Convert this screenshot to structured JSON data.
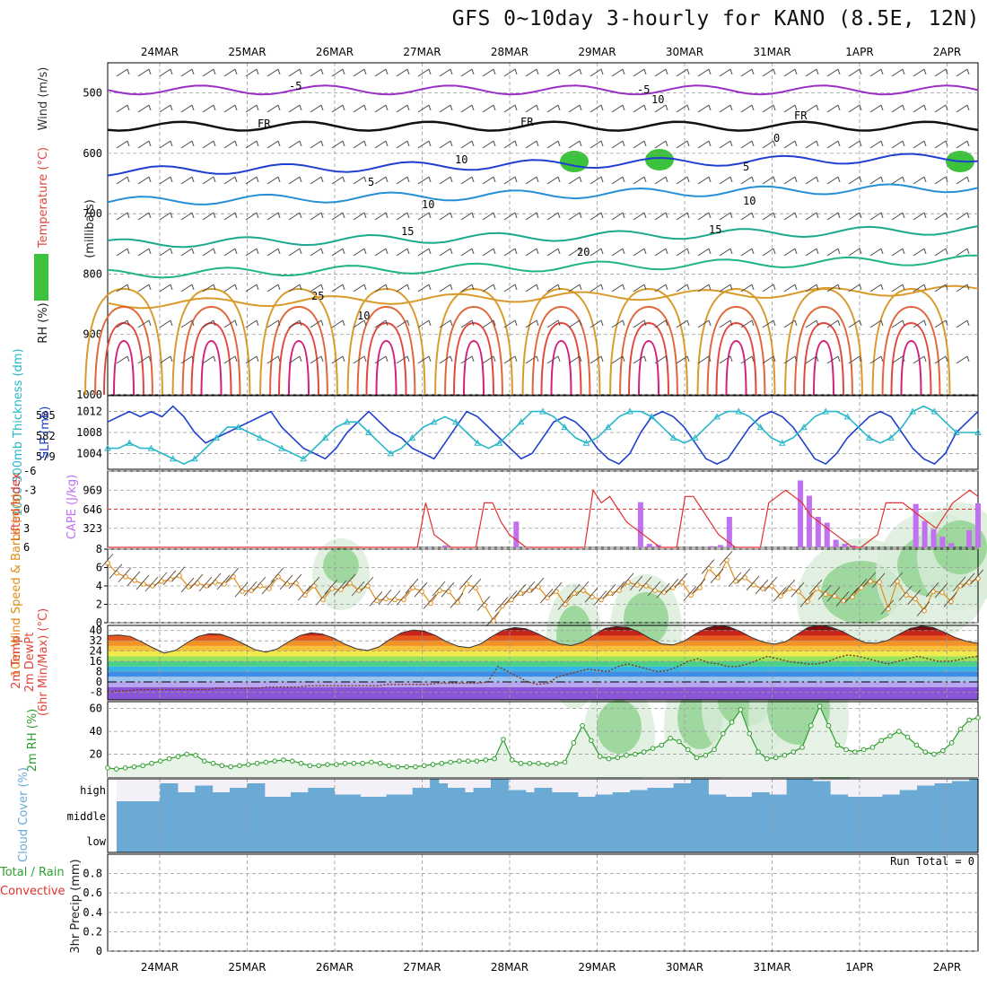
{
  "title": "GFS 0~10day 3-hourly for KANO (8.5E, 12N)",
  "colors": {
    "temp": "#e0463c",
    "wind": "#4a4a4a",
    "rh_green": "#3cc23c",
    "slp": "#1f3fd0",
    "thickness": "#27b7c9",
    "lifted": "#e03030",
    "cape": "#c070f0",
    "wind10": "#e08c1a",
    "cloud": "#6aaad4",
    "rh2m": "#2e9e2e",
    "precip_total": "#2ea02e",
    "precip_conv": "#e03030"
  },
  "chart_data": [
    {
      "panel": "upper_air",
      "type": "heatmap",
      "dates": [
        "24MAR",
        "25MAR",
        "26MAR",
        "27MAR",
        "28MAR",
        "29MAR",
        "30MAR",
        "31MAR",
        "1APR",
        "2APR"
      ],
      "y_ticks": [
        500,
        600,
        700,
        800,
        900,
        1000
      ],
      "ylim": [
        450,
        1000
      ],
      "ylabels": [
        "RH (%)",
        "Temperature (°C)",
        "Wind (m/s)"
      ],
      "yaxis_label": "(millibars)",
      "isotherm_labels": [
        "-5",
        "-5",
        "FR",
        "FR",
        "FR",
        "0",
        "5",
        "5",
        "10",
        "10",
        "15",
        "15",
        "20",
        "25",
        "10",
        "10",
        "10"
      ],
      "isotherm_levels": [
        {
          "label": "-5",
          "level": 495
        },
        {
          "label": "FR",
          "level": 555
        },
        {
          "label": "5",
          "level": 630
        },
        {
          "label": "10",
          "level": 680
        },
        {
          "label": "15",
          "level": 750
        },
        {
          "label": "20",
          "level": 800
        },
        {
          "label": "25",
          "level": 850
        }
      ]
    },
    {
      "panel": "slp_thickness",
      "type": "line",
      "ylabels": [
        "1000-500mb Thickness (dm)",
        "SLP (mb)"
      ],
      "left_ticks": [
        579,
        582,
        585
      ],
      "right_ticks": [
        1004,
        1008,
        1012
      ],
      "slp_lim": [
        1001,
        1015
      ],
      "series": [
        {
          "name": "SLP",
          "values": [
            1010,
            1011,
            1012,
            1011,
            1012,
            1011,
            1013,
            1011,
            1008,
            1006,
            1007,
            1008,
            1009,
            1010,
            1011,
            1012,
            1009,
            1007,
            1005,
            1004,
            1003,
            1005,
            1008,
            1010,
            1012,
            1010,
            1008,
            1007,
            1005,
            1004,
            1003,
            1006,
            1009,
            1012,
            1011,
            1009,
            1007,
            1005,
            1003,
            1004,
            1007,
            1010,
            1011,
            1010,
            1008,
            1005,
            1003,
            1002,
            1004,
            1008,
            1011,
            1012,
            1011,
            1009,
            1006,
            1003,
            1002,
            1003,
            1006,
            1009,
            1011,
            1012,
            1011,
            1009,
            1006,
            1003,
            1002,
            1004,
            1007,
            1009,
            1011,
            1012,
            1011,
            1008,
            1005,
            1003,
            1002,
            1004,
            1008,
            1010,
            1012
          ]
        },
        {
          "name": "Thickness",
          "values": [
            1005,
            1005,
            1006,
            1005,
            1005,
            1004,
            1003,
            1002,
            1003,
            1005,
            1007,
            1009,
            1009,
            1008,
            1007,
            1006,
            1005,
            1004,
            1003,
            1005,
            1007,
            1009,
            1010,
            1010,
            1008,
            1006,
            1004,
            1005,
            1007,
            1009,
            1010,
            1011,
            1010,
            1008,
            1006,
            1005,
            1006,
            1008,
            1010,
            1012,
            1012,
            1011,
            1009,
            1007,
            1006,
            1007,
            1009,
            1011,
            1012,
            1012,
            1011,
            1009,
            1007,
            1006,
            1007,
            1009,
            1011,
            1012,
            1012,
            1011,
            1009,
            1007,
            1006,
            1007,
            1009,
            1011,
            1012,
            1012,
            1011,
            1009,
            1007,
            1006,
            1007,
            1009,
            1012,
            1013,
            1012,
            1010,
            1008,
            1008,
            1008
          ]
        }
      ]
    },
    {
      "panel": "lifted_cape",
      "type": "bar",
      "ylabels": [
        "Lifted Index",
        "CAPE (J/kg)"
      ],
      "left_ticks": [
        -6,
        -3,
        0,
        3,
        6
      ],
      "right_ticks": [
        323,
        646,
        969
      ],
      "cape_lim": [
        0,
        1300
      ],
      "cape": [
        0,
        0,
        0,
        0,
        0,
        0,
        0,
        0,
        0,
        0,
        0,
        0,
        0,
        0,
        0,
        0,
        0,
        0,
        0,
        0,
        0,
        0,
        0,
        0,
        0,
        0,
        0,
        0,
        0,
        0,
        0,
        0,
        0,
        0,
        0,
        0,
        0,
        0,
        30,
        0,
        0,
        0,
        0,
        0,
        0,
        0,
        440,
        0,
        0,
        0,
        0,
        0,
        0,
        0,
        0,
        0,
        0,
        0,
        0,
        0,
        770,
        60,
        40,
        0,
        0,
        0,
        0,
        0,
        20,
        40,
        520,
        0,
        0,
        0,
        0,
        0,
        0,
        0,
        1140,
        880,
        520,
        420,
        130,
        60,
        30,
        0,
        0,
        0,
        0,
        0,
        0,
        740,
        450,
        310,
        180,
        70,
        0,
        290,
        750
      ],
      "lifted": [
        6,
        6,
        6,
        6,
        6,
        6,
        6,
        6,
        6,
        6,
        6,
        6,
        6,
        6,
        6,
        6,
        6,
        6,
        6,
        6,
        6,
        6,
        6,
        6,
        6,
        6,
        6,
        6,
        6,
        6,
        6,
        6,
        6,
        6,
        6,
        6,
        6,
        6,
        -1,
        4,
        5,
        6,
        6,
        6,
        6,
        -1,
        -1,
        2,
        4,
        5,
        6,
        6,
        6,
        6,
        6,
        6,
        6,
        6,
        -3,
        -1,
        -2,
        0,
        2,
        3,
        4,
        5,
        6,
        6,
        6,
        -2,
        -2,
        0,
        2,
        4,
        5,
        6,
        6,
        6,
        6,
        -1,
        -2,
        -3,
        -2,
        -1,
        1,
        2,
        3,
        4,
        5,
        6,
        6,
        5,
        4,
        -1,
        -1,
        -1,
        0,
        1,
        2,
        3,
        1,
        -1,
        -2,
        -3,
        -2
      ]
    },
    {
      "panel": "wind10m",
      "type": "line",
      "ylabels": [
        "10m Wind Speed & Barbs (m/s)"
      ],
      "left_ticks": [
        0,
        2,
        4,
        6,
        8
      ],
      "ylim": [
        0,
        8
      ],
      "series": [
        {
          "name": "Speed",
          "values": [
            6.5,
            5.4,
            5.0,
            4.6,
            4.2,
            4.0,
            4.5,
            4.7,
            5.1,
            3.9,
            4.3,
            4.0,
            4.4,
            4.2,
            5.0,
            3.4,
            3.5,
            4.0,
            3.7,
            5.0,
            4.2,
            4.3,
            3.0,
            4.0,
            2.5,
            3.7,
            3.6,
            4.3,
            3.5,
            4.0,
            2.4,
            2.6,
            2.5,
            2.5,
            3.8,
            3.4,
            2.1,
            3.5,
            3.4,
            2.2,
            4.2,
            3.8,
            1.9,
            0.2,
            1.8,
            2.5,
            3.2,
            3.5,
            3.9,
            2.7,
            3.4,
            2.0,
            3.2,
            3.5,
            2.8,
            2.5,
            3.2,
            3.5,
            4.4,
            4.1,
            4.0,
            3.5,
            3.3,
            3.8,
            4.4,
            3.0,
            3.8,
            5.9,
            4.9,
            6.8,
            4.5,
            4.9,
            4.1,
            3.7,
            4.0,
            2.9,
            3.7,
            3.4,
            2.3,
            3.7,
            3.1,
            2.9,
            2.4,
            2.8,
            3.8,
            4.5,
            4.4,
            1.5,
            4.5,
            3.0,
            2.6,
            1.3,
            3.4,
            3.3,
            2.3,
            4.0,
            4.4,
            4.8
          ]
        }
      ]
    },
    {
      "panel": "temp2m",
      "type": "area",
      "ylabels": [
        "2m Temp",
        "2m DewPt",
        "(6hr Min/Max) (°C)"
      ],
      "left_ticks": [
        -8,
        0,
        8,
        16,
        24,
        32,
        40
      ],
      "ylim": [
        -14,
        44
      ],
      "series": [
        {
          "name": "Temp",
          "values": [
            36.0,
            36.5,
            35.4,
            31.2,
            26.5,
            22.5,
            24.5,
            30.4,
            35.4,
            37.5,
            37.1,
            34.0,
            29.7,
            25.3,
            23.2,
            25.7,
            31.2,
            36.1,
            38.2,
            37.2,
            34.1,
            29.3,
            25.8,
            24.4,
            27.2,
            33.3,
            38.3,
            40.4,
            39.6,
            36.2,
            31.2,
            27.8,
            26.6,
            29.6,
            35.4,
            40.4,
            42.3,
            41.4,
            37.7,
            33.4,
            29.6,
            28.3,
            30.8,
            36.4,
            41.6,
            43.0,
            42.4,
            38.9,
            33.7,
            29.6,
            28.8,
            31.7,
            37.4,
            42.0,
            44.0,
            42.8,
            39.2,
            34.4,
            31.0,
            29.4,
            31.4,
            37.1,
            42.5,
            44.2,
            42.6,
            39.4,
            34.5,
            30.5,
            30.1,
            32.3,
            37.0,
            41.6,
            43.4,
            42.4,
            38.7,
            34.5,
            31.6,
            30.0
          ]
        },
        {
          "name": "DewPt",
          "values": [
            -8,
            -7,
            -7,
            -6,
            -6,
            -6,
            -6,
            -6,
            -6,
            -6,
            -6,
            -5,
            -5,
            -5,
            -5,
            -5,
            -4,
            -4,
            -4,
            -4,
            -3,
            -3,
            -3,
            -3,
            -3,
            -3,
            -3,
            -3,
            -2,
            -2,
            -2,
            -2,
            -2,
            -1,
            -1,
            -1,
            -1,
            -1,
            0,
            12,
            8,
            4,
            0,
            -2,
            -1,
            4,
            6,
            8,
            10,
            9,
            8,
            12,
            14,
            12,
            10,
            8,
            9,
            12,
            16,
            18,
            15,
            14,
            12,
            12,
            14,
            17,
            20,
            18,
            16,
            15,
            14,
            14,
            16,
            19,
            21,
            20,
            18,
            16,
            14,
            16,
            18,
            20,
            18,
            16,
            16,
            17,
            19,
            20
          ]
        }
      ]
    },
    {
      "panel": "rh2m",
      "type": "area",
      "ylabels": [
        "2m RH (%)"
      ],
      "left_ticks": [
        20,
        40,
        60
      ],
      "ylim": [
        0,
        66
      ],
      "series": [
        {
          "name": "RH",
          "values": [
            8,
            7,
            8,
            9,
            10,
            12,
            14,
            16,
            18,
            20,
            19,
            14,
            12,
            10,
            9,
            10,
            11,
            12,
            13,
            14,
            15,
            14,
            12,
            10,
            10,
            11,
            11,
            12,
            12,
            12,
            13,
            12,
            10,
            9,
            9,
            9,
            10,
            11,
            12,
            13,
            14,
            14,
            14,
            15,
            16,
            33,
            15,
            12,
            12,
            12,
            11,
            12,
            13,
            30,
            45,
            32,
            18,
            16,
            17,
            19,
            20,
            22,
            25,
            28,
            34,
            31,
            24,
            17,
            19,
            24,
            38,
            48,
            59,
            38,
            22,
            16,
            17,
            19,
            22,
            26,
            45,
            62,
            45,
            28,
            24,
            22,
            24,
            26,
            32,
            36,
            40,
            35,
            28,
            22,
            20,
            23,
            30,
            42,
            50,
            52
          ]
        }
      ]
    },
    {
      "panel": "cloud_cover",
      "type": "bar",
      "ylabels": [
        "Cloud Cover (%)"
      ],
      "levels": [
        "high",
        "middle",
        "low"
      ],
      "high": [
        0,
        0,
        0,
        0,
        0,
        80,
        80,
        40,
        40,
        70,
        70,
        40,
        40,
        60,
        60,
        80,
        80,
        20,
        20,
        20,
        40,
        40,
        60,
        60,
        60,
        30,
        30,
        30,
        20,
        20,
        20,
        30,
        30,
        30,
        60,
        60,
        100,
        80,
        60,
        60,
        40,
        60,
        60,
        100,
        100,
        50,
        50,
        40,
        60,
        60,
        40,
        40,
        40,
        20,
        20,
        30,
        30,
        40,
        40,
        50,
        50,
        60,
        60,
        60,
        80,
        80,
        100,
        100,
        30,
        30,
        20,
        20,
        20,
        40,
        40,
        30,
        30,
        100,
        100,
        100,
        90,
        90,
        30,
        30,
        20,
        20,
        20,
        20,
        30,
        30,
        50,
        50,
        70,
        70,
        80,
        80,
        90,
        90,
        100
      ]
    },
    {
      "panel": "precip",
      "type": "bar",
      "ylabels": [
        "Total / Rain",
        "Convective",
        "3hr Precip (mm)"
      ],
      "left_ticks": [
        0,
        0.2,
        0.4,
        0.6,
        0.8
      ],
      "ylim": [
        0,
        1
      ],
      "annotation": "Run Total = 0",
      "values": []
    }
  ]
}
